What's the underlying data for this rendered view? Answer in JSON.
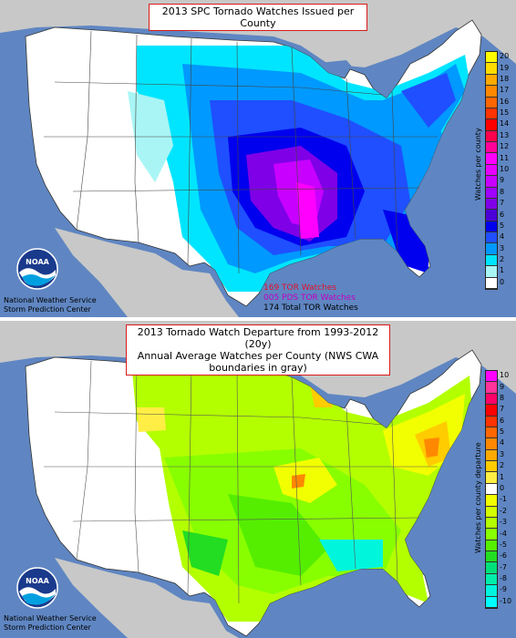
{
  "colors": {
    "ocean": "#5f86c2",
    "land_other": "#c8c8c8",
    "zero": "#ffffff",
    "title_border": "#d81a1a"
  },
  "top": {
    "title": "2013 SPC Tornado Watches Issued per County",
    "colorbar_title": "Watches per county",
    "colorbar_ticks": [
      "0",
      "1",
      "2",
      "3",
      "4",
      "5",
      "6",
      "7",
      "8",
      "9",
      "10",
      "11",
      "12",
      "13",
      "14",
      "15",
      "16",
      "17",
      "18",
      "19",
      "20"
    ],
    "colorbar_colors": [
      "#ffffff",
      "#a9f5f5",
      "#00e5ff",
      "#0099ff",
      "#1f4fff",
      "#0000ee",
      "#4b00d6",
      "#7f00e6",
      "#a000ff",
      "#c800ff",
      "#e600ff",
      "#ff00ff",
      "#ff0099",
      "#ff004d",
      "#ff0000",
      "#ff3300",
      "#ff6600",
      "#ff8800",
      "#ffaa00",
      "#ffdd00",
      "#ffff00"
    ],
    "stats": [
      {
        "text": "169 TOR Watches",
        "color": "#e0102a"
      },
      {
        "text": "005 PDS TOR Watches",
        "color": "#c000c0"
      },
      {
        "text": "174 Total TOR Watches",
        "color": "#000000"
      }
    ],
    "agency_line1": "National Weather Service",
    "agency_line2": "Storm Prediction Center",
    "logo_text": "NOAA"
  },
  "bottom": {
    "title_line1": "2013 Tornado Watch Departure from 1993-2012 (20y)",
    "title_line2": "Annual Average Watches per County (NWS CWA boundaries in gray)",
    "colorbar_title": "Watches per county departure",
    "colorbar_ticks": [
      "10",
      "9",
      "8",
      "7",
      "6",
      "5",
      "4",
      "3",
      "2",
      "1",
      "0",
      "-1",
      "-2",
      "-3",
      "-4",
      "-5",
      "-6",
      "-7",
      "-8",
      "-9",
      "-10"
    ],
    "colorbar_colors": [
      "#ff00ff",
      "#ff3399",
      "#ff0066",
      "#ff0000",
      "#ff3300",
      "#ff6600",
      "#ff8800",
      "#ffaa00",
      "#ffcc00",
      "#ffee44",
      "#ffffff",
      "#f2ff00",
      "#d4ff00",
      "#b3ff00",
      "#88ff00",
      "#55ee00",
      "#22dd22",
      "#00e07a",
      "#00eeaa",
      "#00f5dd",
      "#00ffff"
    ],
    "agency_line1": "National Weather Service",
    "agency_line2": "Storm Prediction Center",
    "logo_text": "NOAA"
  }
}
